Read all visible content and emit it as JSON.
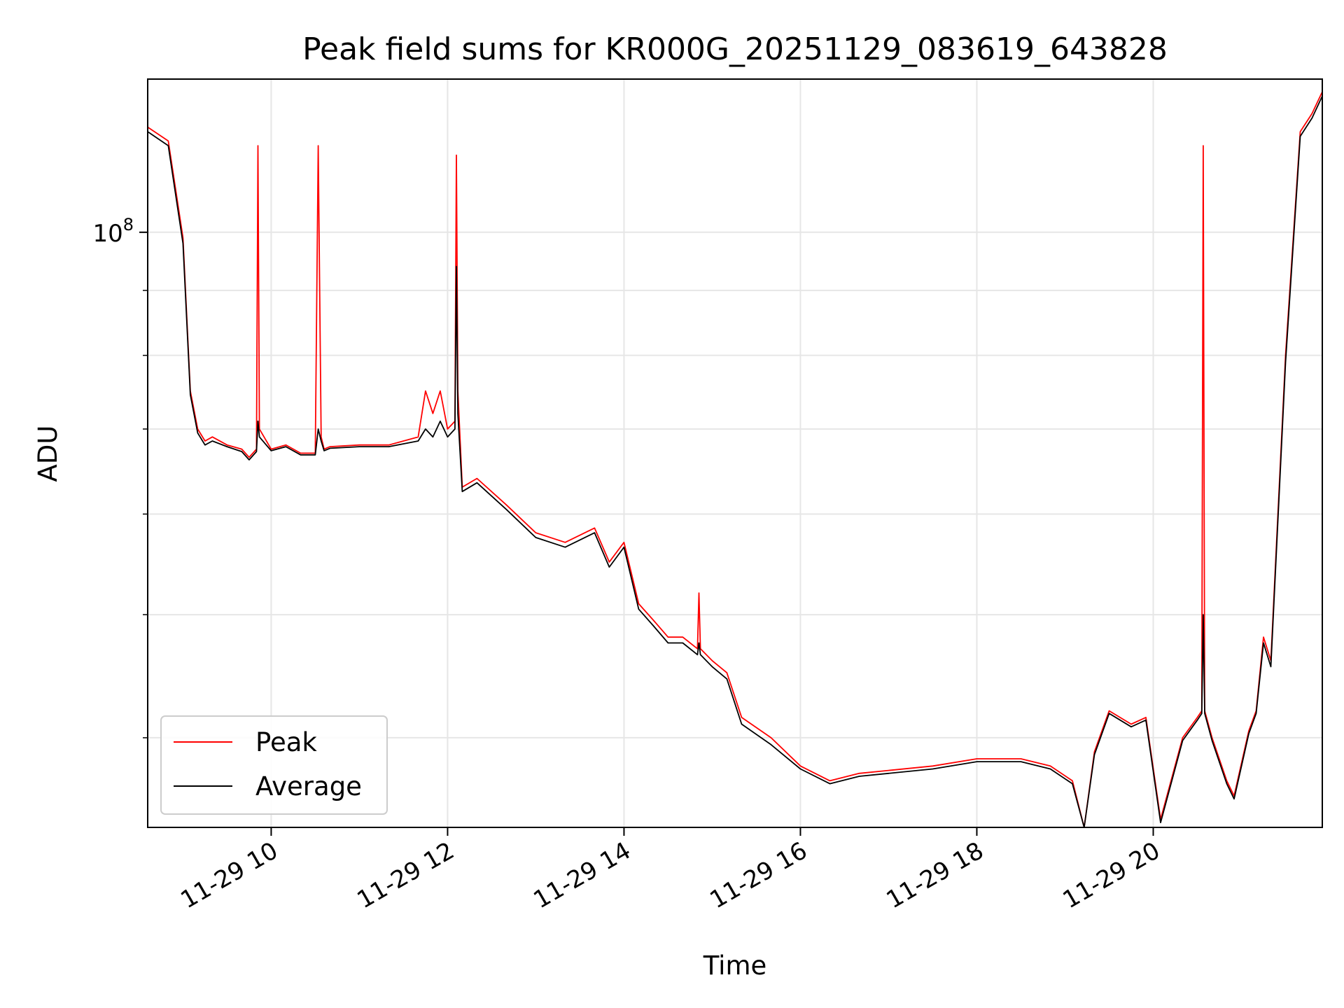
{
  "chart_data": {
    "type": "line",
    "title": "Peak field sums for KR000G_20251129_083619_643828",
    "xlabel": "Time",
    "ylabel": "ADU",
    "yscale": "log",
    "grid": true,
    "legend_position": "lower-left",
    "xlim": [
      "2025-11-29T08:36",
      "2025-11-29T21:55"
    ],
    "ylim": [
      34000000,
      132000000
    ],
    "x_tick_labels": [
      "11-29 10",
      "11-29 12",
      "11-29 14",
      "11-29 16",
      "11-29 18",
      "11-29 20"
    ],
    "x_tick_values": [
      "2025-11-29T10:00",
      "2025-11-29T12:00",
      "2025-11-29T14:00",
      "2025-11-29T16:00",
      "2025-11-29T18:00",
      "2025-11-29T20:00"
    ],
    "y_tick_labels": [
      {
        "base": "10",
        "exp": "8"
      }
    ],
    "y_tick_values": [
      100000000
    ],
    "series": [
      {
        "name": "Peak",
        "color": "#ff0000",
        "x": [
          "2025-11-29T08:36",
          "2025-11-29T08:50",
          "2025-11-29T09:00",
          "2025-11-29T09:05",
          "2025-11-29T09:10",
          "2025-11-29T09:15",
          "2025-11-29T09:20",
          "2025-11-29T09:30",
          "2025-11-29T09:40",
          "2025-11-29T09:45",
          "2025-11-29T09:50",
          "2025-11-29T09:51",
          "2025-11-29T09:52",
          "2025-11-29T10:00",
          "2025-11-29T10:10",
          "2025-11-29T10:20",
          "2025-11-29T10:30",
          "2025-11-29T10:32",
          "2025-11-29T10:34",
          "2025-11-29T10:36",
          "2025-11-29T10:40",
          "2025-11-29T11:00",
          "2025-11-29T11:20",
          "2025-11-29T11:40",
          "2025-11-29T11:45",
          "2025-11-29T11:50",
          "2025-11-29T11:55",
          "2025-11-29T12:00",
          "2025-11-29T12:05",
          "2025-11-29T12:06",
          "2025-11-29T12:07",
          "2025-11-29T12:10",
          "2025-11-29T12:20",
          "2025-11-29T12:40",
          "2025-11-29T13:00",
          "2025-11-29T13:20",
          "2025-11-29T13:40",
          "2025-11-29T13:50",
          "2025-11-29T14:00",
          "2025-11-29T14:10",
          "2025-11-29T14:20",
          "2025-11-29T14:30",
          "2025-11-29T14:40",
          "2025-11-29T14:50",
          "2025-11-29T14:51",
          "2025-11-29T14:52",
          "2025-11-29T15:00",
          "2025-11-29T15:10",
          "2025-11-29T15:20",
          "2025-11-29T15:40",
          "2025-11-29T16:00",
          "2025-11-29T16:20",
          "2025-11-29T16:40",
          "2025-11-29T17:00",
          "2025-11-29T17:30",
          "2025-11-29T18:00",
          "2025-11-29T18:30",
          "2025-11-29T18:50",
          "2025-11-29T19:05",
          "2025-11-29T19:13",
          "2025-11-29T19:20",
          "2025-11-29T19:30",
          "2025-11-29T19:45",
          "2025-11-29T19:55",
          "2025-11-29T20:05",
          "2025-11-29T20:20",
          "2025-11-29T20:30",
          "2025-11-29T20:33",
          "2025-11-29T20:34",
          "2025-11-29T20:35",
          "2025-11-29T20:40",
          "2025-11-29T20:50",
          "2025-11-29T20:55",
          "2025-11-29T21:05",
          "2025-11-29T21:10",
          "2025-11-29T21:15",
          "2025-11-29T21:20",
          "2025-11-29T21:30",
          "2025-11-29T21:40",
          "2025-11-29T21:48",
          "2025-11-29T21:55"
        ],
        "values": [
          121000000,
          118000000,
          99000000,
          75000000,
          70000000,
          68500000,
          69000000,
          68000000,
          67500000,
          66500000,
          67500000,
          117000000,
          70000000,
          67500000,
          68000000,
          67000000,
          67000000,
          117000000,
          69000000,
          67500000,
          67800000,
          68000000,
          68000000,
          69000000,
          75000000,
          72000000,
          75000000,
          70000000,
          71000000,
          115000000,
          75000000,
          63000000,
          64000000,
          61000000,
          58000000,
          57000000,
          58500000,
          55000000,
          57000000,
          51000000,
          49500000,
          48000000,
          48000000,
          47000000,
          52000000,
          47000000,
          46000000,
          45000000,
          41500000,
          40000000,
          38000000,
          37000000,
          37500000,
          37700000,
          38000000,
          38500000,
          38500000,
          38000000,
          37000000,
          34000000,
          39000000,
          42000000,
          41000000,
          41500000,
          34500000,
          40000000,
          41500000,
          42000000,
          117000000,
          42000000,
          40000000,
          37000000,
          36000000,
          40500000,
          42000000,
          48000000,
          46000000,
          80000000,
          120000000,
          124000000,
          129000000
        ]
      },
      {
        "name": "Average",
        "color": "#000000",
        "x": [
          "2025-11-29T08:36",
          "2025-11-29T08:50",
          "2025-11-29T09:00",
          "2025-11-29T09:05",
          "2025-11-29T09:10",
          "2025-11-29T09:15",
          "2025-11-29T09:20",
          "2025-11-29T09:30",
          "2025-11-29T09:40",
          "2025-11-29T09:45",
          "2025-11-29T09:50",
          "2025-11-29T09:51",
          "2025-11-29T09:52",
          "2025-11-29T10:00",
          "2025-11-29T10:10",
          "2025-11-29T10:20",
          "2025-11-29T10:30",
          "2025-11-29T10:32",
          "2025-11-29T10:34",
          "2025-11-29T10:36",
          "2025-11-29T10:40",
          "2025-11-29T11:00",
          "2025-11-29T11:20",
          "2025-11-29T11:40",
          "2025-11-29T11:45",
          "2025-11-29T11:50",
          "2025-11-29T11:55",
          "2025-11-29T12:00",
          "2025-11-29T12:05",
          "2025-11-29T12:06",
          "2025-11-29T12:07",
          "2025-11-29T12:10",
          "2025-11-29T12:20",
          "2025-11-29T12:40",
          "2025-11-29T13:00",
          "2025-11-29T13:20",
          "2025-11-29T13:40",
          "2025-11-29T13:50",
          "2025-11-29T14:00",
          "2025-11-29T14:10",
          "2025-11-29T14:20",
          "2025-11-29T14:30",
          "2025-11-29T14:40",
          "2025-11-29T14:50",
          "2025-11-29T14:51",
          "2025-11-29T14:52",
          "2025-11-29T15:00",
          "2025-11-29T15:10",
          "2025-11-29T15:20",
          "2025-11-29T15:40",
          "2025-11-29T16:00",
          "2025-11-29T16:20",
          "2025-11-29T16:40",
          "2025-11-29T17:00",
          "2025-11-29T17:30",
          "2025-11-29T18:00",
          "2025-11-29T18:30",
          "2025-11-29T18:50",
          "2025-11-29T19:05",
          "2025-11-29T19:13",
          "2025-11-29T19:20",
          "2025-11-29T19:30",
          "2025-11-29T19:45",
          "2025-11-29T19:55",
          "2025-11-29T20:05",
          "2025-11-29T20:20",
          "2025-11-29T20:30",
          "2025-11-29T20:33",
          "2025-11-29T20:34",
          "2025-11-29T20:35",
          "2025-11-29T20:40",
          "2025-11-29T20:50",
          "2025-11-29T20:55",
          "2025-11-29T21:05",
          "2025-11-29T21:10",
          "2025-11-29T21:15",
          "2025-11-29T21:20",
          "2025-11-29T21:30",
          "2025-11-29T21:40",
          "2025-11-29T21:48",
          "2025-11-29T21:55"
        ],
        "values": [
          120000000,
          117000000,
          98000000,
          74500000,
          69500000,
          68000000,
          68500000,
          67800000,
          67200000,
          66200000,
          67200000,
          71000000,
          69000000,
          67300000,
          67800000,
          66800000,
          66800000,
          70000000,
          68500000,
          67300000,
          67600000,
          67800000,
          67800000,
          68500000,
          70000000,
          69000000,
          71000000,
          69000000,
          70000000,
          94000000,
          72000000,
          62500000,
          63500000,
          60500000,
          57500000,
          56500000,
          58000000,
          54500000,
          56500000,
          50500000,
          49000000,
          47500000,
          47500000,
          46500000,
          47500000,
          46500000,
          45500000,
          44500000,
          41000000,
          39500000,
          37800000,
          36800000,
          37300000,
          37500000,
          37800000,
          38300000,
          38300000,
          37800000,
          36800000,
          34000000,
          38800000,
          41800000,
          40800000,
          41300000,
          34300000,
          39800000,
          41300000,
          41800000,
          50000000,
          41800000,
          39800000,
          36800000,
          35800000,
          40300000,
          41800000,
          47500000,
          45500000,
          79000000,
          119000000,
          123000000,
          128000000
        ]
      }
    ]
  }
}
